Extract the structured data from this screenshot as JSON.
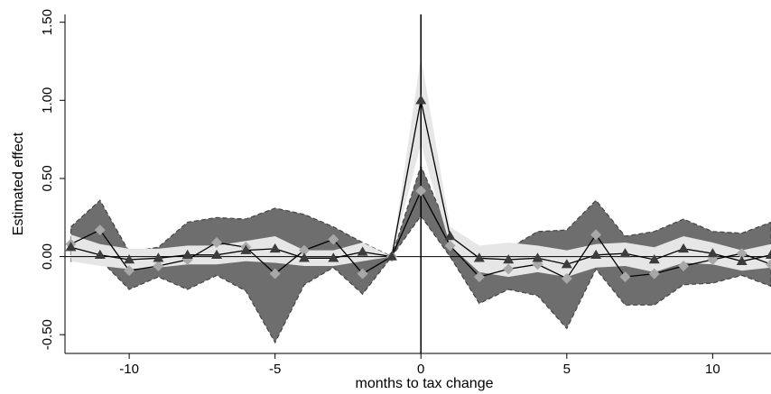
{
  "chart_data": {
    "type": "line",
    "xlabel": "months to tax change",
    "ylabel": "Estimated effect",
    "x_ticks": [
      "-10",
      "-5",
      "0",
      "5",
      "10"
    ],
    "y_ticks": [
      "-0.50",
      "0.00",
      "0.50",
      "1.00",
      "1.50"
    ],
    "xlim": [
      -12.2,
      12
    ],
    "ylim": [
      -0.62,
      1.55
    ],
    "reference_lines": {
      "vertical_at_x": 0,
      "horizontal_at_y": 0
    },
    "grid": false,
    "legend": "none",
    "x": [
      -12,
      -11,
      -10,
      -9,
      -8,
      -7,
      -6,
      -5,
      -4,
      -3,
      -2,
      -1,
      0,
      1,
      2,
      3,
      4,
      5,
      6,
      7,
      8,
      9,
      10,
      11,
      12
    ],
    "series": [
      {
        "marker": "triangle",
        "color": "#000000",
        "values": [
          0.06,
          0.01,
          -0.02,
          -0.01,
          0.01,
          0.01,
          0.04,
          0.05,
          -0.01,
          -0.01,
          0.03,
          0.0,
          1.0,
          0.13,
          -0.01,
          -0.02,
          -0.01,
          -0.05,
          0.01,
          0.02,
          -0.02,
          0.05,
          0.02,
          -0.03,
          0.01
        ],
        "ci_lower": [
          -0.03,
          -0.06,
          -0.08,
          -0.07,
          -0.05,
          -0.05,
          -0.03,
          -0.04,
          -0.06,
          -0.06,
          -0.03,
          0.0,
          0.72,
          0.07,
          -0.1,
          -0.13,
          -0.1,
          -0.13,
          -0.07,
          -0.06,
          -0.1,
          -0.04,
          -0.05,
          -0.09,
          -0.07
        ],
        "ci_upper": [
          0.14,
          0.08,
          0.05,
          0.05,
          0.07,
          0.07,
          0.1,
          0.13,
          0.04,
          0.04,
          0.09,
          0.0,
          1.28,
          0.19,
          0.07,
          0.09,
          0.07,
          0.04,
          0.08,
          0.09,
          0.06,
          0.13,
          0.09,
          0.04,
          0.08
        ],
        "ci_color": "#e6e6e6"
      },
      {
        "marker": "diamond",
        "color": "#000000",
        "marker_color": "#a8a8a8",
        "values": [
          0.08,
          0.17,
          -0.09,
          -0.06,
          -0.02,
          0.09,
          0.06,
          -0.11,
          0.04,
          0.11,
          -0.11,
          0.0,
          0.42,
          0.07,
          -0.13,
          -0.08,
          -0.05,
          -0.14,
          0.14,
          -0.13,
          -0.11,
          -0.06,
          -0.02,
          0.02,
          -0.05
        ],
        "ci_lower": [
          -0.03,
          -0.02,
          -0.21,
          -0.13,
          -0.21,
          -0.12,
          -0.22,
          -0.55,
          -0.18,
          -0.07,
          -0.24,
          0.0,
          0.26,
          0.0,
          -0.3,
          -0.21,
          -0.25,
          -0.46,
          -0.08,
          -0.31,
          -0.31,
          -0.18,
          -0.17,
          -0.12,
          -0.19
        ],
        "ci_upper": [
          0.19,
          0.36,
          0.03,
          0.06,
          0.22,
          0.25,
          0.24,
          0.31,
          0.27,
          0.19,
          0.09,
          0.0,
          0.58,
          0.15,
          0.04,
          0.05,
          0.16,
          0.17,
          0.36,
          0.13,
          0.16,
          0.24,
          0.16,
          0.15,
          0.22
        ],
        "ci_color": "#6e6e6e",
        "ci_edge": "dashed"
      }
    ]
  }
}
